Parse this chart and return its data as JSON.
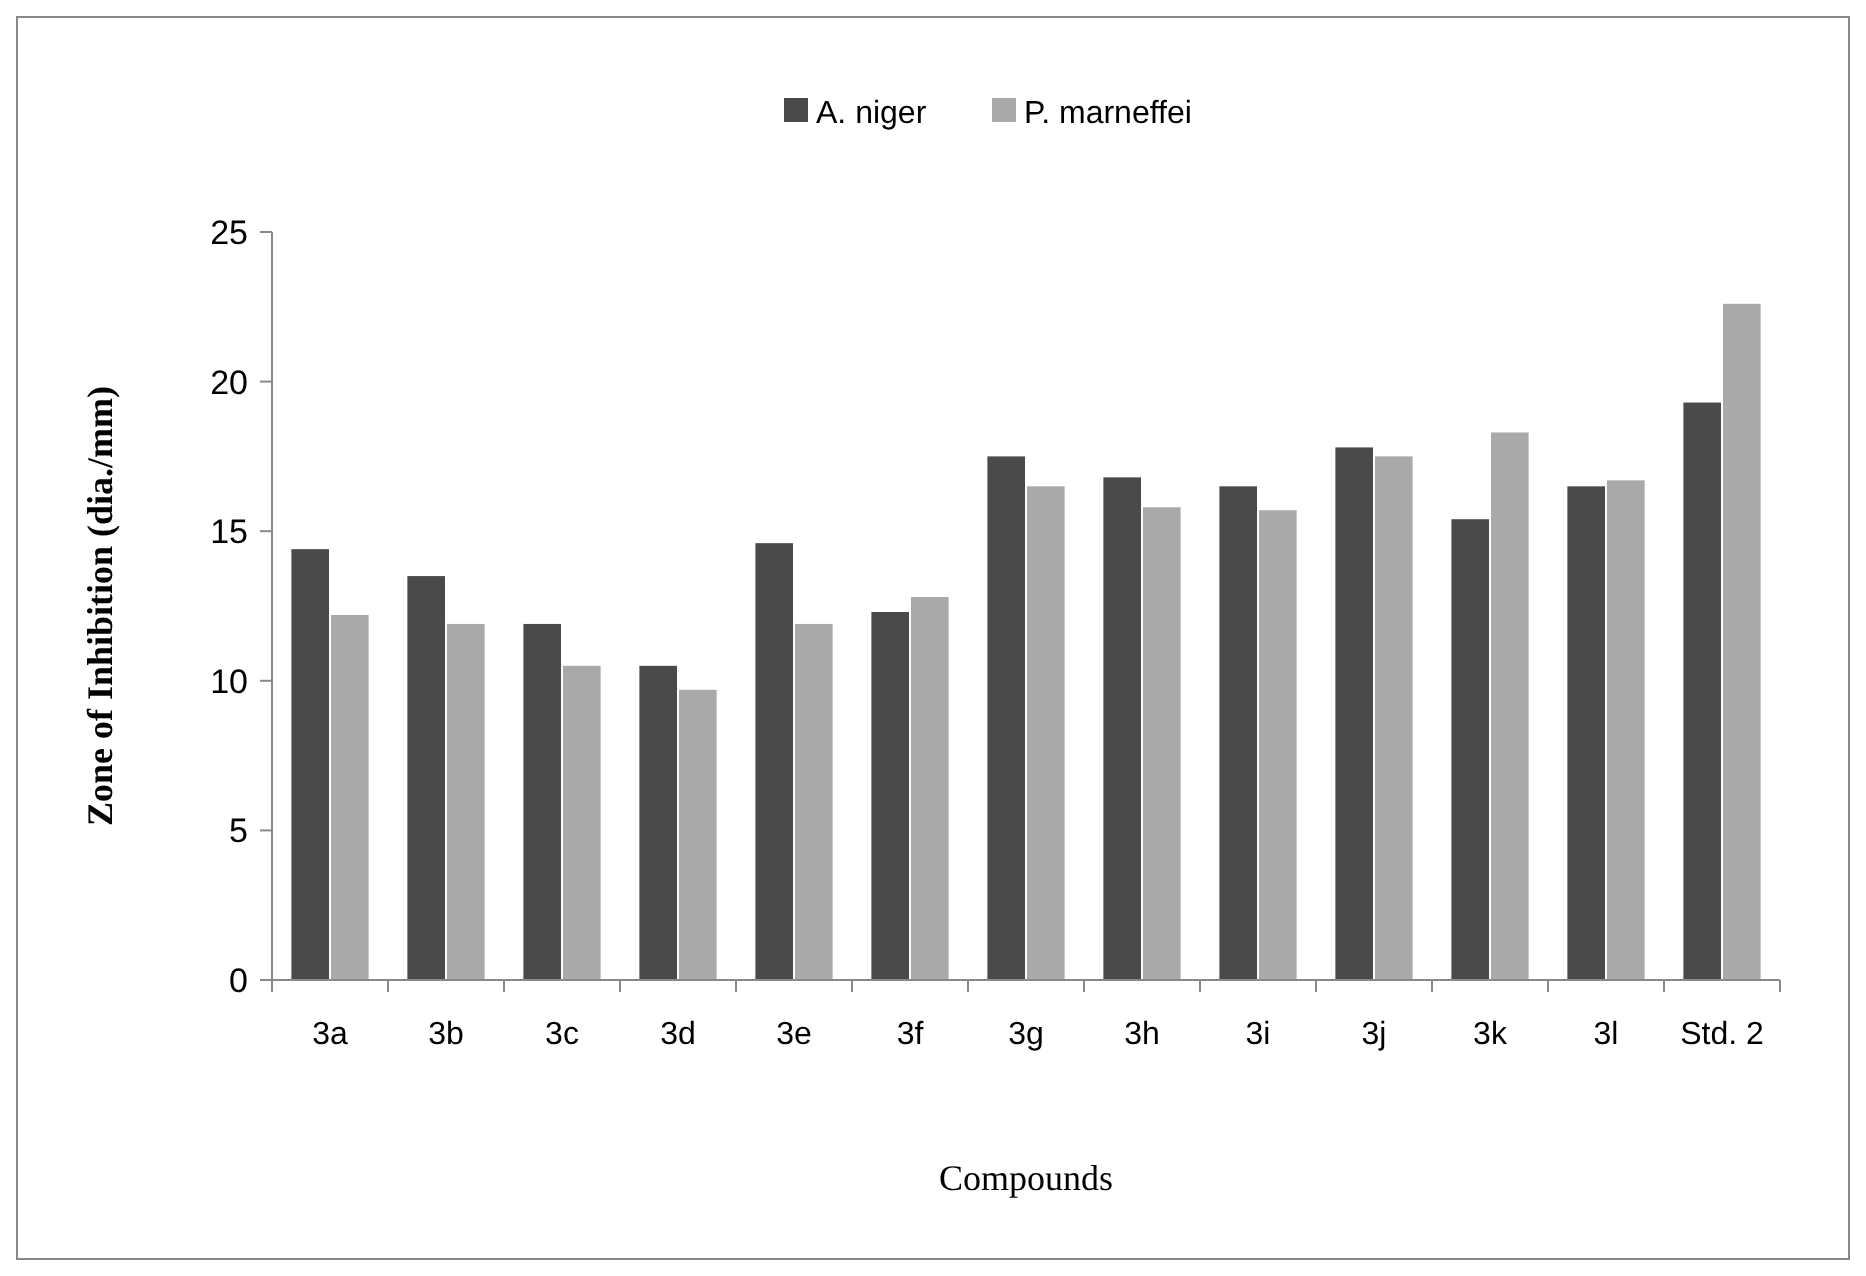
{
  "chart_data": {
    "type": "bar",
    "xlabel": "Compounds",
    "ylabel": "Zone of Inhibition (dia./mm)",
    "categories": [
      "3a",
      "3b",
      "3c",
      "3d",
      "3e",
      "3f",
      "3g",
      "3h",
      "3i",
      "3j",
      "3k",
      "3l",
      "Std. 2"
    ],
    "series": [
      {
        "name": "A. niger",
        "color": "#4a4a4a",
        "values": [
          14.4,
          13.5,
          11.9,
          10.5,
          14.6,
          12.3,
          17.5,
          16.8,
          16.5,
          17.8,
          15.4,
          16.5,
          19.3
        ]
      },
      {
        "name": "P. marneffei",
        "color": "#a9a9a9",
        "values": [
          12.2,
          11.9,
          10.5,
          9.7,
          11.9,
          12.8,
          16.5,
          15.8,
          15.7,
          17.5,
          18.3,
          16.7,
          22.6
        ]
      }
    ],
    "ylim": [
      0,
      25
    ],
    "yticks": [
      0,
      5,
      10,
      15,
      20,
      25
    ],
    "grid": false,
    "legend": "top"
  }
}
